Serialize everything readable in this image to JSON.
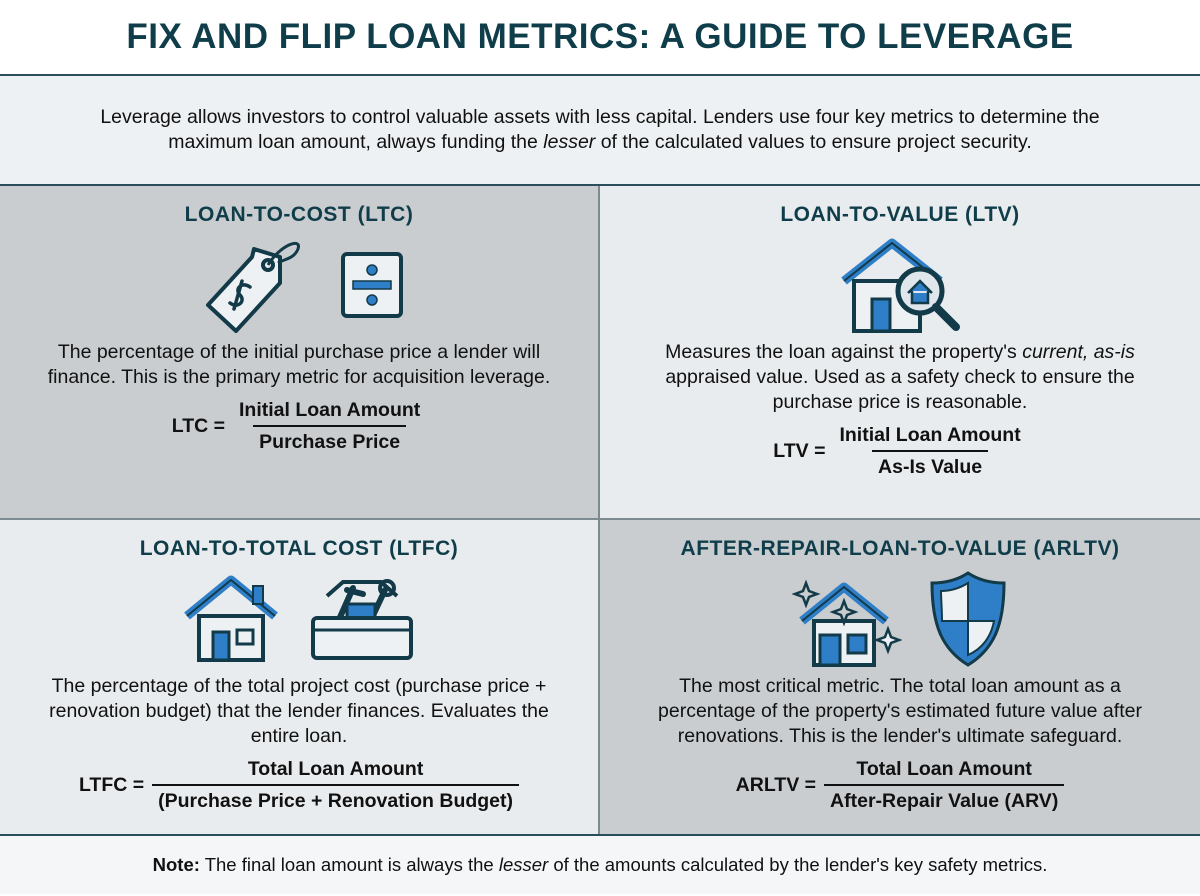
{
  "title": "FIX AND FLIP LOAN METRICS: A GUIDE TO LEVERAGE",
  "intro": {
    "before": "Leverage allows investors to control valuable assets with less capital. Lenders use four key metrics to determine the maximum loan amount, always funding the ",
    "em": "lesser",
    "after": " of the calculated values to ensure project security."
  },
  "colors": {
    "heading": "#0f3d4a",
    "accent_blue": "#2f7fc8",
    "outline": "#123a48"
  },
  "metrics": [
    {
      "heading": "LOAN-TO-COST (LTC)",
      "icons": [
        "price-tag-icon",
        "divide-icon"
      ],
      "description": "The percentage of the initial purchase price a lender will finance. This is the primary metric for acquisition leverage.",
      "formula_label": "LTC =",
      "numerator": "Initial Loan Amount",
      "denominator": "Purchase Price"
    },
    {
      "heading": "LOAN-TO-VALUE (LTV)",
      "icons": [
        "house-magnifier-icon"
      ],
      "description_before": "Measures the loan against the property's ",
      "description_em": "current, as-is",
      "description_after": " appraised value. Used as a safety check to ensure the purchase price is reasonable.",
      "formula_label": "LTV =",
      "numerator": "Initial Loan Amount",
      "denominator": "As-Is Value"
    },
    {
      "heading": "LOAN-TO-TOTAL COST (LTFC)",
      "icons": [
        "house-icon",
        "toolbox-icon"
      ],
      "description": "The percentage of the total project cost (purchase price + renovation budget) that the lender finances. Evaluates the entire loan.",
      "formula_label": "LTFC =",
      "numerator": "Total Loan Amount",
      "denominator": "(Purchase Price + Renovation Budget)"
    },
    {
      "heading": "AFTER-REPAIR-LOAN-TO-VALUE (ARLTV)",
      "icons": [
        "sparkling-house-icon",
        "shield-icon"
      ],
      "description": "The most critical metric. The total loan amount as a percentage of the property's estimated future value after renovations. This is the lender's ultimate safeguard.",
      "formula_label": "ARLTV =",
      "numerator": "Total Loan Amount",
      "denominator": "After-Repair Value (ARV)"
    }
  ],
  "note": {
    "label": "Note:",
    "before": " The final loan amount is always the ",
    "em": "lesser",
    "after": " of the amounts calculated by the lender's key safety metrics."
  }
}
